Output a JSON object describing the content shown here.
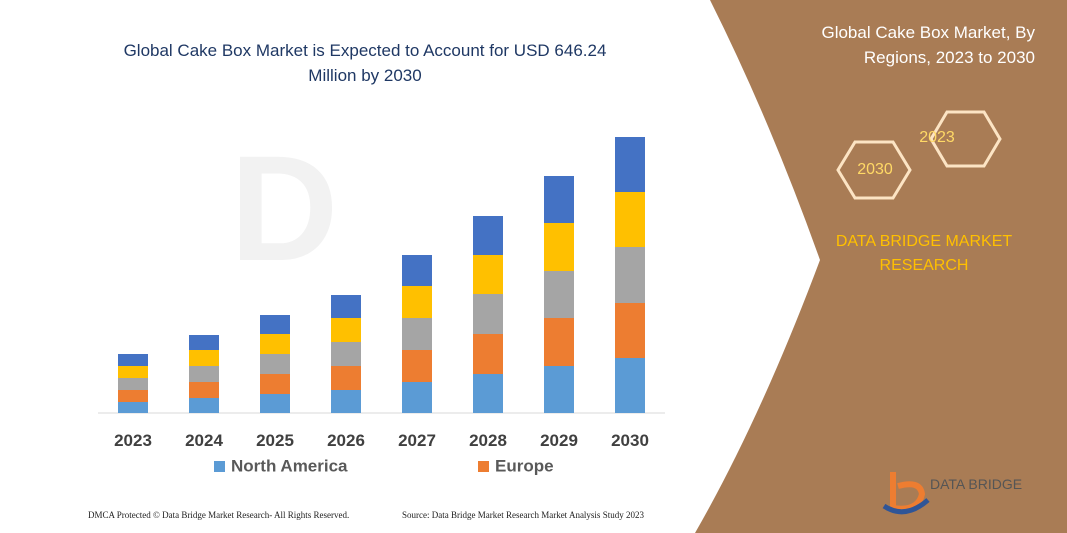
{
  "chart_data": {
    "type": "stacked-bar",
    "title": "Global Cake Box Market is Expected to Account for USD 646.24 Million by 2030",
    "categories": [
      "2023",
      "2024",
      "2025",
      "2026",
      "2027",
      "2028",
      "2029",
      "2030"
    ],
    "series": [
      {
        "name": "North America",
        "color": "#5b9bd5",
        "values": [
          11,
          15,
          19,
          23,
          31,
          39,
          47,
          55
        ]
      },
      {
        "name": "Europe",
        "color": "#ed7d31",
        "values": [
          12,
          16,
          20,
          24,
          32,
          40,
          48,
          55
        ]
      },
      {
        "color": "#a5a5a5",
        "values": [
          12,
          16,
          20,
          24,
          32,
          40,
          47,
          56
        ]
      },
      {
        "color": "#ffc000",
        "values": [
          12,
          16,
          20,
          24,
          32,
          39,
          48,
          55
        ]
      },
      {
        "color": "#4472c4",
        "values": [
          12,
          15,
          19,
          23,
          31,
          39,
          47,
          55
        ]
      }
    ]
  },
  "sidebar": {
    "title": "Global Cake Box Market, By Regions, 2023 to 2030",
    "hexagons": [
      "2023",
      "2030"
    ],
    "brand": "DATA BRIDGE MARKET RESEARCH"
  },
  "logo": "DATA BRIDGE",
  "footer": {
    "copyright": "DMCA Protected © Data Bridge Market Research- All Rights Reserved.",
    "source": "Source: Data Bridge Market Research  Market Analysis Study 2023"
  }
}
